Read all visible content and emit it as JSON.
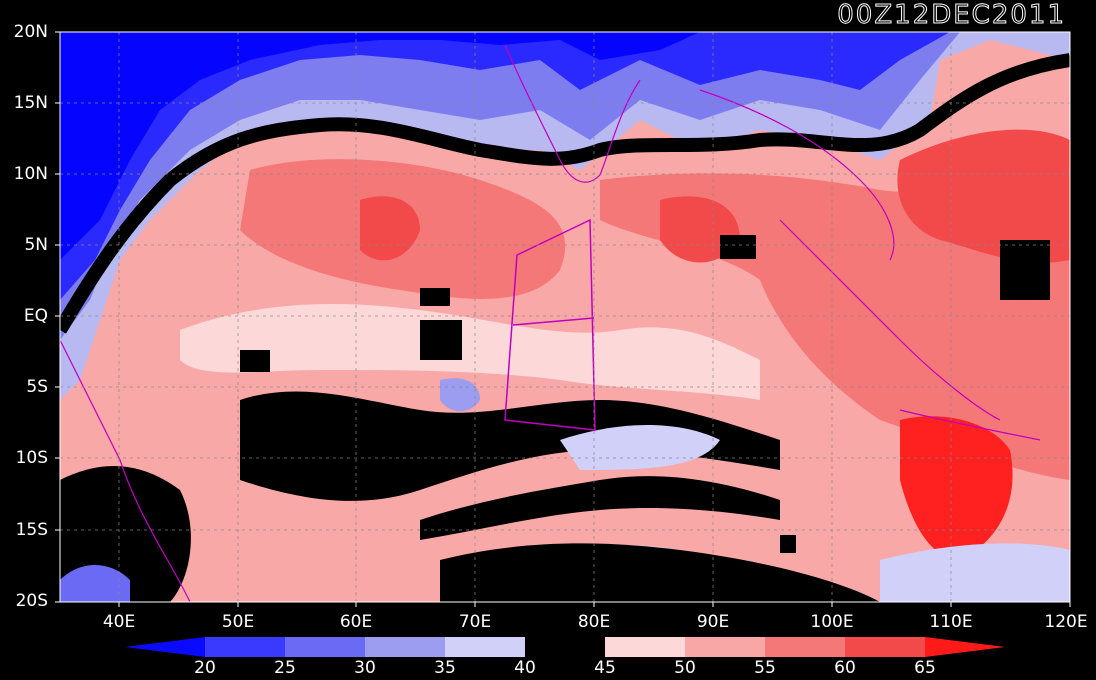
{
  "title": "00Z12DEC2011",
  "lat_labels": [
    "20N",
    "15N",
    "10N",
    "5N",
    "EQ",
    "5S",
    "10S",
    "15S",
    "20S"
  ],
  "lon_labels": [
    "40E",
    "50E",
    "60E",
    "70E",
    "80E",
    "90E",
    "100E",
    "110E",
    "120E"
  ],
  "colorbar": {
    "values": [
      "20",
      "25",
      "30",
      "35",
      "40",
      "45",
      "50",
      "55",
      "60",
      "65"
    ],
    "colors": [
      "#0a0aff",
      "#3a3aff",
      "#6a6af5",
      "#9c9cf0",
      "#d0d0f8",
      "#000000",
      "#fcd8d8",
      "#f8a6a6",
      "#f47878",
      "#f24a4a",
      "#ff1a1a"
    ]
  },
  "colors": {
    "background": "#000000",
    "land_outline": "#c000c0",
    "box_outline": "#c000c0",
    "gridline": "#888888"
  }
}
